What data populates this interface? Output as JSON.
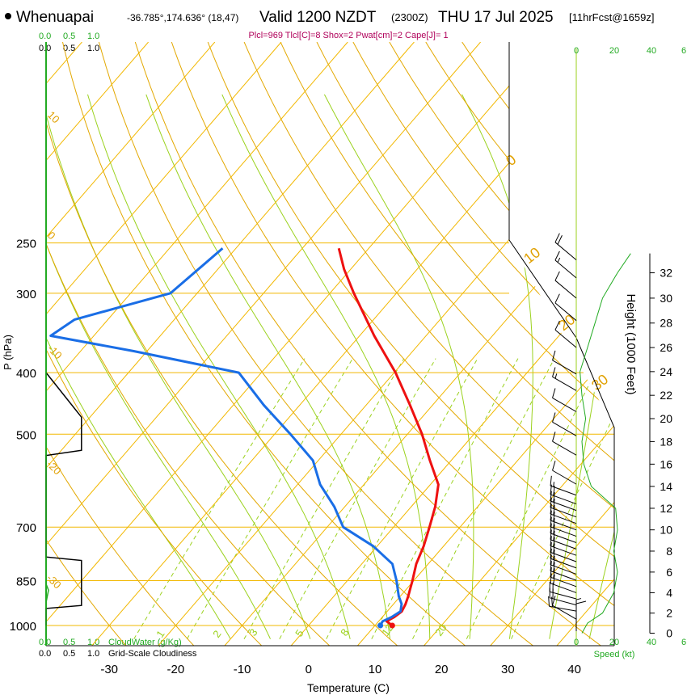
{
  "header": {
    "station": "Whenuapai",
    "coords": "-36.785°,174.636° (18,47)",
    "valid": "Valid 1200 NZDT",
    "utc": "(2300Z)",
    "date": "THU 17 Jul 2025",
    "forecast": "[11hrFcst@1659z]",
    "params": "Plcl=969 Tlcl[C]=8 Shox=2 Pwat[cm]=2 Cape[J]= 1"
  },
  "colors": {
    "isotherm": "#f2b800",
    "drywet": "#e3a800",
    "mixing": "#9bd21e",
    "temp": "#ee1111",
    "dew": "#1a6ee6",
    "green": "#22aa22",
    "label_orange": "#e0a000"
  },
  "chart_data": {
    "type": "line",
    "xlabel": "Temperature (C)",
    "ylabel": "P (hPa)",
    "x_ticks": [
      "-30",
      "-20",
      "-10",
      "0",
      "10",
      "20",
      "30",
      "40"
    ],
    "p_ticks": [
      "250",
      "300",
      "400",
      "500",
      "700",
      "850",
      "1000"
    ],
    "right_axis_label": "Height (1000 Feet)",
    "height_ticks": [
      "0",
      "2",
      "4",
      "6",
      "8",
      "10",
      "12",
      "14",
      "16",
      "18",
      "20",
      "22",
      "24",
      "26",
      "28",
      "30",
      "32"
    ],
    "speed_label": "Speed (kt)",
    "speed_ticks": [
      "0",
      "20",
      "40",
      "6"
    ],
    "cloud_water_label": "CloudWater (g/Kg)",
    "cloud_water_ticks": [
      "0.0",
      "0.5",
      "1.0"
    ],
    "cloudiness_label": "Grid-Scale Cloudiness",
    "cloudiness_ticks": [
      "0.0",
      "0.5",
      "1.0"
    ],
    "mixing_labels": [
      "1",
      "2",
      "3",
      "5",
      "8",
      "12",
      "20"
    ],
    "dry_adiabat_labels": [
      "0",
      "10",
      "20",
      "30"
    ],
    "isotherm_labels": [
      "10",
      "0",
      "-10",
      "-20",
      "-30"
    ],
    "series": [
      {
        "key": "temperature",
        "points": [
          [
            1000,
            12.6
          ],
          [
            985,
            11.2
          ],
          [
            970,
            11.8
          ],
          [
            950,
            12.2
          ],
          [
            925,
            11.8
          ],
          [
            900,
            11.2
          ],
          [
            850,
            9.8
          ],
          [
            800,
            8.2
          ],
          [
            750,
            7.0
          ],
          [
            700,
            5.4
          ],
          [
            650,
            3.6
          ],
          [
            600,
            1.2
          ],
          [
            550,
            -3.2
          ],
          [
            500,
            -7.8
          ],
          [
            450,
            -13.4
          ],
          [
            400,
            -19.8
          ],
          [
            350,
            -27.8
          ],
          [
            300,
            -36.4
          ],
          [
            275,
            -41.0
          ],
          [
            255,
            -44.5
          ]
        ]
      },
      {
        "key": "dewpoint",
        "points": [
          [
            1000,
            10.8
          ],
          [
            985,
            10.6
          ],
          [
            970,
            11.4
          ],
          [
            950,
            12.0
          ],
          [
            925,
            11.2
          ],
          [
            900,
            9.8
          ],
          [
            850,
            7.4
          ],
          [
            800,
            4.6
          ],
          [
            750,
            -0.6
          ],
          [
            700,
            -7.6
          ],
          [
            650,
            -11.6
          ],
          [
            600,
            -16.6
          ],
          [
            550,
            -20.8
          ],
          [
            500,
            -27.6
          ],
          [
            450,
            -35.4
          ],
          [
            400,
            -43.4
          ],
          [
            370,
            -62.0
          ],
          [
            350,
            -76.5
          ],
          [
            330,
            -75.0
          ],
          [
            300,
            -64.0
          ],
          [
            255,
            -62.0
          ]
        ]
      }
    ],
    "cloudiness_series": [
      [
        1000,
        0.0
      ],
      [
        940,
        0.0
      ],
      [
        930,
        0.73
      ],
      [
        790,
        0.73
      ],
      [
        780,
        0.0
      ],
      [
        540,
        0.0
      ],
      [
        530,
        0.73
      ],
      [
        470,
        0.73
      ],
      [
        400,
        0.0
      ]
    ],
    "cloudwater_series": [
      [
        1000,
        0.0
      ],
      [
        920,
        0.0
      ],
      [
        880,
        0.05
      ],
      [
        860,
        0.0
      ],
      [
        250,
        0.0
      ]
    ],
    "wind_speed_profile": [
      [
        0,
        3
      ],
      [
        1,
        6
      ],
      [
        2,
        14
      ],
      [
        4,
        20
      ],
      [
        6,
        22
      ],
      [
        8,
        20
      ],
      [
        10,
        22
      ],
      [
        12,
        21
      ],
      [
        14,
        8
      ],
      [
        16,
        4
      ],
      [
        18,
        3
      ],
      [
        20,
        5
      ],
      [
        22,
        3
      ],
      [
        24,
        2
      ],
      [
        26,
        6
      ],
      [
        28,
        10
      ],
      [
        30,
        14
      ],
      [
        32,
        22
      ],
      [
        33.5,
        29
      ]
    ],
    "wind_barbs": [
      [
        0.2,
        8,
        360
      ],
      [
        0.6,
        6,
        360
      ],
      [
        1.4,
        12,
        300
      ],
      [
        2.2,
        18,
        280
      ],
      [
        2.8,
        20,
        285
      ],
      [
        3.4,
        22,
        285
      ],
      [
        4.0,
        22,
        290
      ],
      [
        4.6,
        22,
        290
      ],
      [
        5.2,
        22,
        290
      ],
      [
        5.8,
        22,
        290
      ],
      [
        6.4,
        22,
        290
      ],
      [
        7.0,
        22,
        290
      ],
      [
        7.6,
        22,
        290
      ],
      [
        8.2,
        22,
        290
      ],
      [
        8.8,
        22,
        290
      ],
      [
        9.4,
        22,
        290
      ],
      [
        10.0,
        22,
        290
      ],
      [
        10.6,
        22,
        290
      ],
      [
        11.2,
        22,
        290
      ],
      [
        11.8,
        20,
        290
      ],
      [
        12.4,
        18,
        290
      ],
      [
        13.2,
        15,
        290
      ],
      [
        14.2,
        8,
        300
      ],
      [
        16.8,
        8,
        300
      ],
      [
        18.5,
        10,
        300
      ],
      [
        20.6,
        12,
        300
      ],
      [
        22.4,
        15,
        300
      ],
      [
        23.8,
        12,
        300
      ],
      [
        26.0,
        10,
        310
      ],
      [
        28.2,
        12,
        310
      ],
      [
        30.0,
        12,
        310
      ],
      [
        31.6,
        14,
        310
      ],
      [
        33.0,
        20,
        310
      ]
    ]
  }
}
